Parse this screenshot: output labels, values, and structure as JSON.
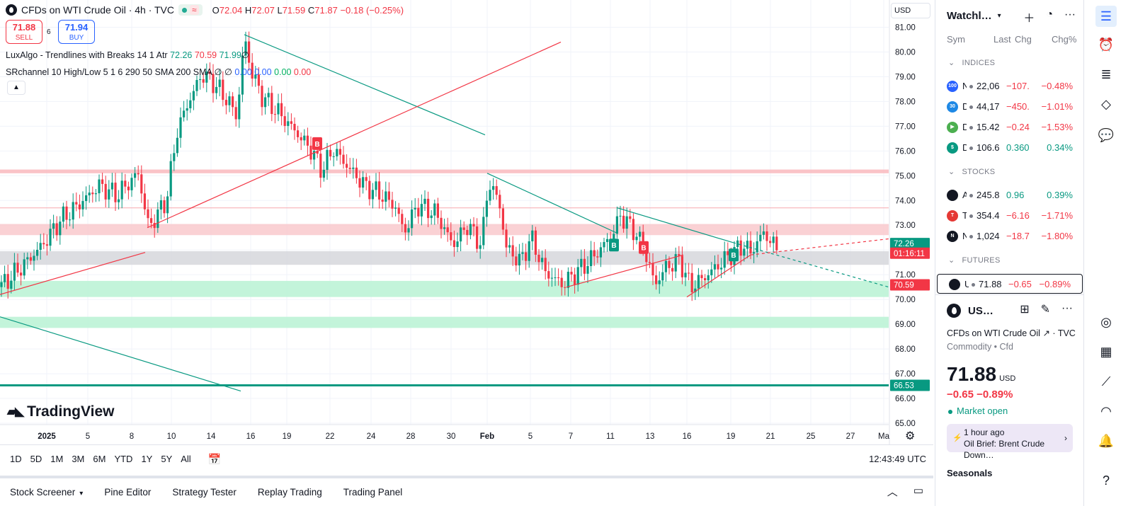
{
  "header": {
    "title": "CFDs on WTI Crude Oil · 4h · TVC",
    "status_wave": "≈",
    "ohlc": {
      "o_label": "O",
      "o": "72.04",
      "h_label": "H",
      "h": "72.07",
      "l_label": "L",
      "l": "71.59",
      "c_label": "C",
      "c": "71.87",
      "change": "−0.18 (−0.25%)"
    }
  },
  "trade": {
    "sell_price": "71.88",
    "sell_label": "SELL",
    "spread": "6",
    "buy_price": "71.94",
    "buy_label": "BUY"
  },
  "indicators": {
    "luxalgo": {
      "name": "LuxAlgo - Trendlines with Breaks 14 1 Atr",
      "v1": "72.26",
      "v2": "70.59",
      "v3": "71.99",
      "v4": "∅"
    },
    "srchannel": {
      "name": "SRchannel 10 High/Low 5 1 6 290 50 SMA 200 SMA",
      "v1": "∅",
      "v2": "∅",
      "v3": "0.00",
      "v4": "0.00",
      "v5": "0.00",
      "v6": "0.00"
    }
  },
  "logo_text": "TradingView",
  "currency": "USD",
  "chart_data": {
    "type": "candlestick",
    "y_ticks": [
      "81.00",
      "80.00",
      "79.00",
      "78.00",
      "77.00",
      "76.00",
      "75.00",
      "74.00",
      "73.00",
      "72.00",
      "71.00",
      "70.00",
      "69.00",
      "68.00",
      "67.00",
      "66.00",
      "65.00"
    ],
    "x_ticks": [
      "2025",
      "5",
      "8",
      "10",
      "14",
      "16",
      "19",
      "22",
      "24",
      "28",
      "30",
      "Feb",
      "5",
      "7",
      "11",
      "13",
      "16",
      "19",
      "21",
      "25",
      "27",
      "Ma"
    ],
    "ylim": [
      64.6,
      81.7
    ],
    "price_labels": [
      {
        "value": 72.26,
        "text": "72.26",
        "color": "#089981"
      },
      {
        "value": 71.87,
        "text": "01:16:11",
        "color": "#f23645"
      },
      {
        "value": 70.59,
        "text": "70.59",
        "color": "#f23645"
      },
      {
        "value": 66.53,
        "text": "66.53",
        "color": "#089981"
      }
    ],
    "zones": [
      {
        "from": 75.1,
        "to": 75.25,
        "color": "#f9b8bd"
      },
      {
        "from": 72.6,
        "to": 73.05,
        "color": "#f9c9cd"
      },
      {
        "from": 71.4,
        "to": 71.95,
        "color": "#d6d7dc"
      },
      {
        "from": 70.1,
        "to": 70.75,
        "color": "#b9f2d3"
      },
      {
        "from": 68.85,
        "to": 69.3,
        "color": "#b9f2d3"
      }
    ],
    "hlines": [
      {
        "value": 73.7,
        "color": "#f7a8ae"
      },
      {
        "value": 66.53,
        "color": "#089981"
      }
    ],
    "markers": [
      {
        "label": "B",
        "x_index": 20,
        "value": 76.3,
        "color": "#f23645"
      },
      {
        "label": "B",
        "x_index": 128,
        "value": 72.2,
        "color": "#089981"
      },
      {
        "label": "B",
        "x_index": 134,
        "value": 72.1,
        "color": "#f23645"
      },
      {
        "label": "B",
        "x_index": 160,
        "value": 71.8,
        "color": "#089981"
      }
    ]
  },
  "range_bar": {
    "items": [
      "1D",
      "5D",
      "1M",
      "3M",
      "6M",
      "YTD",
      "1Y",
      "5Y",
      "All"
    ],
    "clock": "12:43:49 UTC"
  },
  "bottom_bar": {
    "items": [
      "Stock Screener",
      "Pine Editor",
      "Strategy Tester",
      "Replay Trading",
      "Trading Panel"
    ]
  },
  "watchlist": {
    "title": "Watchl…",
    "columns": {
      "sym": "Sym",
      "last": "Last",
      "chg": "Chg",
      "pct": "Chg%"
    },
    "sections": [
      {
        "name": "INDICES",
        "rows": [
          {
            "icon": "100",
            "icon_color": "#2962ff",
            "sym": "N",
            "last": "22,06",
            "chg": "−107.",
            "pct": "−0.48%",
            "dir": "neg"
          },
          {
            "icon": "30",
            "icon_color": "#1e88e5",
            "sym": "D",
            "last": "44,17",
            "chg": "−450.",
            "pct": "−1.01%",
            "dir": "neg"
          },
          {
            "icon": "▶",
            "icon_color": "#4caf50",
            "sym": "D",
            "last": "15.42",
            "chg": "−0.24",
            "pct": "−1.53%",
            "dir": "neg"
          },
          {
            "icon": "$",
            "icon_color": "#089981",
            "sym": "DX",
            "last": "106.6",
            "chg": "0.360",
            "pct": "0.34%",
            "dir": "pos"
          }
        ]
      },
      {
        "name": "STOCKS",
        "rows": [
          {
            "icon": "",
            "icon_color": "#131722",
            "sym": "A",
            "last": "245.8",
            "chg": "0.96",
            "pct": "0.39%",
            "dir": "pos"
          },
          {
            "icon": "T",
            "icon_color": "#e53935",
            "sym": "T",
            "last": "354.4",
            "chg": "−6.16",
            "pct": "−1.71%",
            "dir": "neg"
          },
          {
            "icon": "N",
            "icon_color": "#131722",
            "sym": "N",
            "last": "1,024",
            "chg": "−18.7",
            "pct": "−1.80%",
            "dir": "neg"
          }
        ]
      },
      {
        "name": "FUTURES",
        "rows": [
          {
            "icon": "",
            "icon_color": "#131722",
            "sym": "US",
            "last": "71.88",
            "chg": "−0.65",
            "pct": "−0.89%",
            "dir": "neg"
          }
        ]
      }
    ]
  },
  "detail": {
    "symbol": "US…",
    "name": "CFDs on WTI Crude Oil",
    "exchange": "TVC",
    "type": "Commodity • Cfd",
    "price": "71.88",
    "currency": "USD",
    "change": "−0.65  −0.89%",
    "market": "Market open",
    "news_time": "1 hour ago",
    "news_title": "Oil Brief: Brent Crude Down…",
    "seasonals": "Seasonals"
  }
}
